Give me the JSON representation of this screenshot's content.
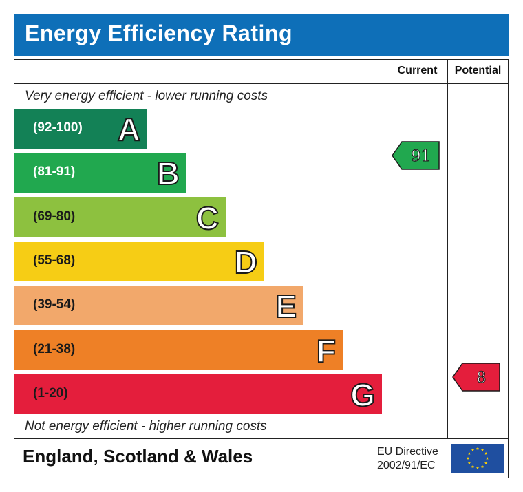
{
  "header": {
    "title": "Energy Efficiency Rating"
  },
  "columns": {
    "current": "Current",
    "potential": "Potential"
  },
  "notes": {
    "top": "Very energy efficient - lower running costs",
    "bottom": "Not energy efficient - higher running costs"
  },
  "footer": {
    "region": "England, Scotland & Wales",
    "directive_line1": "EU Directive",
    "directive_line2": "2002/91/EC",
    "flag_icon": "eu-flag-icon"
  },
  "chart_data": {
    "type": "bar",
    "title": "Energy Efficiency Rating",
    "categories": [
      "A",
      "B",
      "C",
      "D",
      "E",
      "F",
      "G"
    ],
    "bands": [
      {
        "letter": "A",
        "range": "(92-100)",
        "min": 92,
        "max": 100,
        "color": "#138156",
        "text_color": "#ffffff"
      },
      {
        "letter": "B",
        "range": "(81-91)",
        "min": 81,
        "max": 91,
        "color": "#21a84f",
        "text_color": "#ffffff"
      },
      {
        "letter": "C",
        "range": "(69-80)",
        "min": 69,
        "max": 80,
        "color": "#8dc13f",
        "text_color": "#1a1a1a"
      },
      {
        "letter": "D",
        "range": "(55-68)",
        "min": 55,
        "max": 68,
        "color": "#f6cd15",
        "text_color": "#1a1a1a"
      },
      {
        "letter": "E",
        "range": "(39-54)",
        "min": 39,
        "max": 54,
        "color": "#f2a86b",
        "text_color": "#1a1a1a"
      },
      {
        "letter": "F",
        "range": "(21-38)",
        "min": 21,
        "max": 38,
        "color": "#ee8026",
        "text_color": "#1a1a1a"
      },
      {
        "letter": "G",
        "range": "(1-20)",
        "min": 1,
        "max": 20,
        "color": "#e41e3c",
        "text_color": "#1a1a1a"
      }
    ],
    "current": {
      "value": 91,
      "label": "91",
      "band": "B",
      "color": "#21a84f"
    },
    "potential": {
      "value": 8,
      "label": "8",
      "band": "G",
      "color": "#e41e3c"
    }
  }
}
